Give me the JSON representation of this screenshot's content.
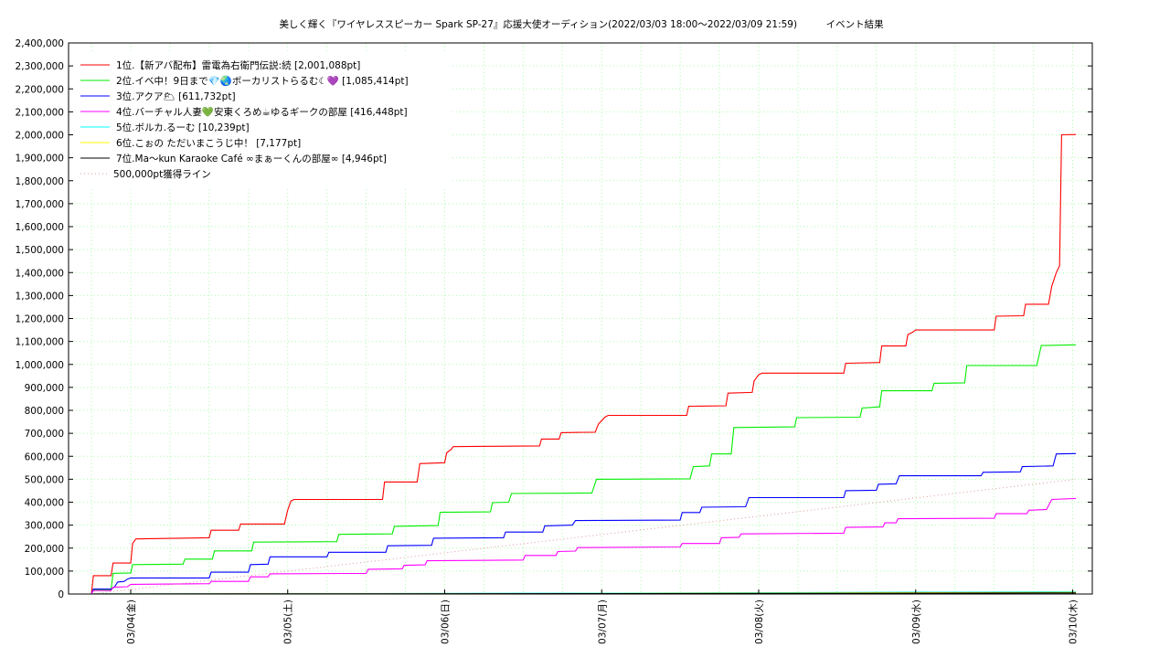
{
  "chart_data": {
    "type": "line",
    "title": "美しく輝く『ワイヤレススピーカー Spark SP-27』応援大使オーディション(2022/03/03 18:00〜2022/03/09 21:59)　　　イベント結果",
    "xlabel": "",
    "ylabel": "",
    "ylim": [
      0,
      2400000
    ],
    "y_ticks": [
      "0",
      "100,000",
      "200,000",
      "300,000",
      "400,000",
      "500,000",
      "600,000",
      "700,000",
      "800,000",
      "900,000",
      "1,000,000",
      "1,100,000",
      "1,200,000",
      "1,300,000",
      "1,400,000",
      "1,500,000",
      "1,600,000",
      "1,700,000",
      "1,800,000",
      "1,900,000",
      "2,000,000",
      "2,100,000",
      "2,200,000",
      "2,300,000",
      "2,400,000"
    ],
    "x_range_hours": [
      0,
      124
    ],
    "x_ticks": [
      {
        "label": "03/04(金)",
        "hour": 6
      },
      {
        "label": "03/05(土)",
        "hour": 30
      },
      {
        "label": "03/06(日)",
        "hour": 54
      },
      {
        "label": "03/07(月)",
        "hour": 78
      },
      {
        "label": "03/08(火)",
        "hour": 102
      },
      {
        "label": "03/09(水)",
        "hour": 126
      },
      {
        "label": "03/10(木)",
        "hour": 150
      }
    ],
    "grid": true,
    "legend_position": "top-left",
    "series": [
      {
        "name": "1位.【新アバ配布】雷電為右衛門伝説:続 [2,001,088pt]",
        "color": "#ff0000",
        "points": [
          [
            0,
            0
          ],
          [
            0.3,
            80000
          ],
          [
            3,
            80000
          ],
          [
            3.3,
            135000
          ],
          [
            6,
            135000
          ],
          [
            6.3,
            220000
          ],
          [
            6.8,
            240000
          ],
          [
            18,
            245000
          ],
          [
            18.3,
            278000
          ],
          [
            22.5,
            278000
          ],
          [
            22.8,
            305000
          ],
          [
            29.5,
            305000
          ],
          [
            30,
            365000
          ],
          [
            30.5,
            405000
          ],
          [
            31,
            412000
          ],
          [
            44.5,
            412000
          ],
          [
            44.8,
            488000
          ],
          [
            49.8,
            488000
          ],
          [
            50.2,
            568000
          ],
          [
            54,
            572000
          ],
          [
            54.3,
            615000
          ],
          [
            55,
            630000
          ],
          [
            55.3,
            642000
          ],
          [
            68.5,
            645000
          ],
          [
            68.8,
            675000
          ],
          [
            71.5,
            675000
          ],
          [
            71.8,
            703000
          ],
          [
            77,
            705000
          ],
          [
            77.5,
            740000
          ],
          [
            78.5,
            770000
          ],
          [
            79,
            778000
          ],
          [
            91,
            778000
          ],
          [
            91.3,
            818000
          ],
          [
            97,
            820000
          ],
          [
            97.3,
            875000
          ],
          [
            101,
            878000
          ],
          [
            101.3,
            928000
          ],
          [
            102,
            955000
          ],
          [
            102.5,
            962000
          ],
          [
            115,
            962000
          ],
          [
            115.3,
            1005000
          ],
          [
            120.5,
            1008000
          ],
          [
            120.8,
            1080000
          ],
          [
            124.5,
            1080000
          ],
          [
            124.8,
            1130000
          ],
          [
            125.5,
            1140000
          ],
          [
            126,
            1150000
          ],
          [
            138,
            1150000
          ],
          [
            138.3,
            1210000
          ],
          [
            142.5,
            1212000
          ],
          [
            142.8,
            1262000
          ],
          [
            146.3,
            1262000
          ],
          [
            146.8,
            1340000
          ],
          [
            147.5,
            1400000
          ],
          [
            148,
            1430000
          ],
          [
            148.3,
            2000000
          ],
          [
            150.5,
            2001088
          ]
        ]
      },
      {
        "name": "2位.イベ中！9日まで💎🌏ボーカリストらるむ☾💜 [1,085,414pt]",
        "color": "#00ee00",
        "points": [
          [
            0,
            0
          ],
          [
            0.3,
            18000
          ],
          [
            3,
            18000
          ],
          [
            3.3,
            90000
          ],
          [
            6,
            92000
          ],
          [
            6.3,
            128000
          ],
          [
            14,
            130000
          ],
          [
            14.3,
            152000
          ],
          [
            18.5,
            152000
          ],
          [
            18.8,
            188000
          ],
          [
            24.5,
            188000
          ],
          [
            24.8,
            226000
          ],
          [
            37.5,
            228000
          ],
          [
            37.8,
            260000
          ],
          [
            46,
            262000
          ],
          [
            46.3,
            295000
          ],
          [
            53,
            298000
          ],
          [
            53.3,
            356000
          ],
          [
            61,
            358000
          ],
          [
            61.3,
            398000
          ],
          [
            63.8,
            400000
          ],
          [
            64.2,
            438000
          ],
          [
            76.5,
            440000
          ],
          [
            77.2,
            500000
          ],
          [
            91.5,
            502000
          ],
          [
            92,
            555000
          ],
          [
            94.5,
            558000
          ],
          [
            94.8,
            610000
          ],
          [
            97.8,
            610000
          ],
          [
            98.2,
            725000
          ],
          [
            107.5,
            728000
          ],
          [
            107.8,
            768000
          ],
          [
            117.5,
            770000
          ],
          [
            117.8,
            810000
          ],
          [
            120.5,
            815000
          ],
          [
            120.8,
            885000
          ],
          [
            128.5,
            885000
          ],
          [
            128.8,
            918000
          ],
          [
            133.5,
            920000
          ],
          [
            133.8,
            995000
          ],
          [
            144.5,
            995000
          ],
          [
            145.2,
            1082000
          ],
          [
            150.5,
            1085414
          ]
        ]
      },
      {
        "name": "3位.アクア🌥 [611,732pt]",
        "color": "#0000ff",
        "points": [
          [
            0,
            0
          ],
          [
            0.3,
            22000
          ],
          [
            3,
            22000
          ],
          [
            3.5,
            30000
          ],
          [
            4,
            52000
          ],
          [
            5,
            55000
          ],
          [
            5.5,
            65000
          ],
          [
            6,
            70000
          ],
          [
            18,
            70000
          ],
          [
            18.3,
            95000
          ],
          [
            24,
            95000
          ],
          [
            24.3,
            128000
          ],
          [
            27,
            130000
          ],
          [
            27.3,
            162000
          ],
          [
            36,
            162000
          ],
          [
            36.3,
            182000
          ],
          [
            45,
            182000
          ],
          [
            45.3,
            210000
          ],
          [
            52,
            212000
          ],
          [
            52.3,
            243000
          ],
          [
            63,
            245000
          ],
          [
            63.3,
            270000
          ],
          [
            69,
            270000
          ],
          [
            69.3,
            297000
          ],
          [
            73.5,
            300000
          ],
          [
            74,
            320000
          ],
          [
            90,
            322000
          ],
          [
            90.3,
            355000
          ],
          [
            93,
            355000
          ],
          [
            93.3,
            378000
          ],
          [
            100,
            380000
          ],
          [
            100.5,
            420000
          ],
          [
            115,
            420000
          ],
          [
            115.3,
            450000
          ],
          [
            120,
            452000
          ],
          [
            120.3,
            478000
          ],
          [
            123,
            480000
          ],
          [
            123.5,
            515000
          ],
          [
            136,
            515000
          ],
          [
            136.3,
            530000
          ],
          [
            142,
            532000
          ],
          [
            142.3,
            555000
          ],
          [
            147,
            558000
          ],
          [
            147.5,
            610000
          ],
          [
            150.5,
            611732
          ]
        ]
      },
      {
        "name": "4位.バーチャル人妻💚安東くろめ☕ゆるギークの部屋 [416,448pt]",
        "color": "#ff00ff",
        "points": [
          [
            0,
            0
          ],
          [
            0.3,
            15000
          ],
          [
            3,
            15000
          ],
          [
            3.3,
            30000
          ],
          [
            5.5,
            32000
          ],
          [
            6,
            42000
          ],
          [
            18,
            45000
          ],
          [
            18.3,
            55000
          ],
          [
            24,
            55000
          ],
          [
            24.3,
            75000
          ],
          [
            27,
            75000
          ],
          [
            27.3,
            88000
          ],
          [
            42,
            90000
          ],
          [
            42.3,
            108000
          ],
          [
            47.5,
            110000
          ],
          [
            47.8,
            125000
          ],
          [
            51,
            127000
          ],
          [
            51.3,
            145000
          ],
          [
            66,
            148000
          ],
          [
            66.3,
            168000
          ],
          [
            71,
            168000
          ],
          [
            71.3,
            185000
          ],
          [
            74,
            187000
          ],
          [
            74.3,
            202000
          ],
          [
            90,
            205000
          ],
          [
            90.3,
            220000
          ],
          [
            96,
            220000
          ],
          [
            96.3,
            245000
          ],
          [
            99,
            247000
          ],
          [
            99.3,
            262000
          ],
          [
            115,
            265000
          ],
          [
            115.3,
            290000
          ],
          [
            121,
            292000
          ],
          [
            121.3,
            310000
          ],
          [
            123,
            310000
          ],
          [
            123.3,
            328000
          ],
          [
            138,
            330000
          ],
          [
            138.3,
            350000
          ],
          [
            143,
            350000
          ],
          [
            143.3,
            365000
          ],
          [
            146,
            368000
          ],
          [
            146.8,
            412000
          ],
          [
            150.5,
            416448
          ]
        ]
      },
      {
        "name": "5位.ボルカ.るーむ [10,239pt]",
        "color": "#00ffff",
        "points": [
          [
            0,
            0
          ],
          [
            0.5,
            600
          ],
          [
            40,
            1500
          ],
          [
            80,
            4000
          ],
          [
            120,
            7000
          ],
          [
            150.5,
            10239
          ]
        ]
      },
      {
        "name": "6位.こぉの ただいまこうじ中！ [7,177pt]",
        "color": "#ffff00",
        "points": [
          [
            0,
            0
          ],
          [
            0.5,
            200
          ],
          [
            40,
            900
          ],
          [
            80,
            2500
          ],
          [
            120,
            5000
          ],
          [
            150.5,
            7177
          ]
        ]
      },
      {
        "name": "7位.Ma〜kun Karaoke Café ∞まぁーくんの部屋∞ [4,946pt]",
        "color": "#000000",
        "points": [
          [
            0,
            0
          ],
          [
            0.5,
            200
          ],
          [
            40,
            600
          ],
          [
            80,
            1800
          ],
          [
            120,
            3000
          ],
          [
            150.5,
            4946
          ]
        ]
      },
      {
        "name": "500,000pt獲得ライン",
        "color": "#dd9999",
        "dotted": true,
        "points": [
          [
            0,
            0
          ],
          [
            150.5,
            500000
          ]
        ]
      }
    ]
  }
}
